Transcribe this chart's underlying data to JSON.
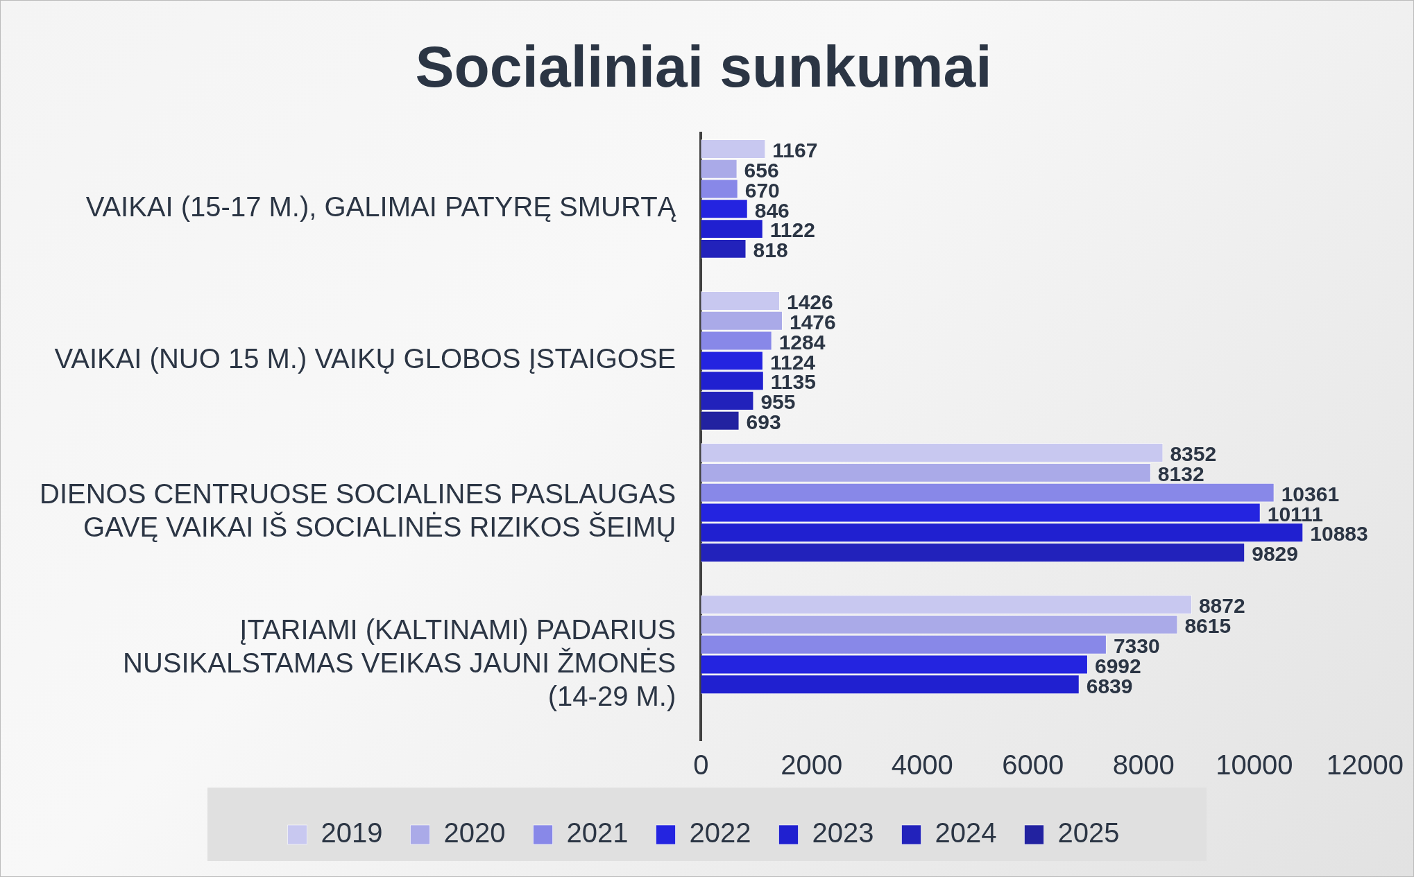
{
  "chart_data": {
    "type": "bar",
    "orientation": "horizontal",
    "title": "Socialiniai sunkumai",
    "categories": [
      "VAIKAI (15-17 M.), GALIMAI PATYRĘ SMURTĄ",
      "VAIKAI (NUO 15 M.) VAIKŲ GLOBOS ĮSTAIGOSE",
      "DIENOS CENTRUOSE SOCIALINES PASLAUGAS GAVĘ VAIKAI IŠ SOCIALINĖS RIZIKOS ŠEIMŲ",
      "ĮTARIAMI (KALTINAMI) PADARIUS NUSIKALSTAMAS VEIKAS JAUNI ŽMONĖS (14-29 M.)"
    ],
    "series": [
      {
        "name": "2019",
        "color": "#c8c8f0",
        "values": [
          1167,
          1426,
          8352,
          8872
        ]
      },
      {
        "name": "2020",
        "color": "#aaaae8",
        "values": [
          656,
          1476,
          8132,
          8615
        ]
      },
      {
        "name": "2021",
        "color": "#8888e8",
        "values": [
          670,
          1284,
          10361,
          7330
        ]
      },
      {
        "name": "2022",
        "color": "#2424e0",
        "values": [
          846,
          1124,
          10111,
          6992
        ]
      },
      {
        "name": "2023",
        "color": "#2020d0",
        "values": [
          1122,
          1135,
          10883,
          6839
        ]
      },
      {
        "name": "2024",
        "color": "#2222bb",
        "values": [
          818,
          955,
          9829,
          null
        ]
      },
      {
        "name": "2025",
        "color": "#2222a0",
        "values": [
          null,
          693,
          null,
          null
        ]
      }
    ],
    "xlim": [
      0,
      12000
    ],
    "xticks": [
      0,
      2000,
      4000,
      6000,
      8000,
      10000,
      12000
    ],
    "grid": false,
    "legend": "bottom",
    "data_labels": true
  }
}
